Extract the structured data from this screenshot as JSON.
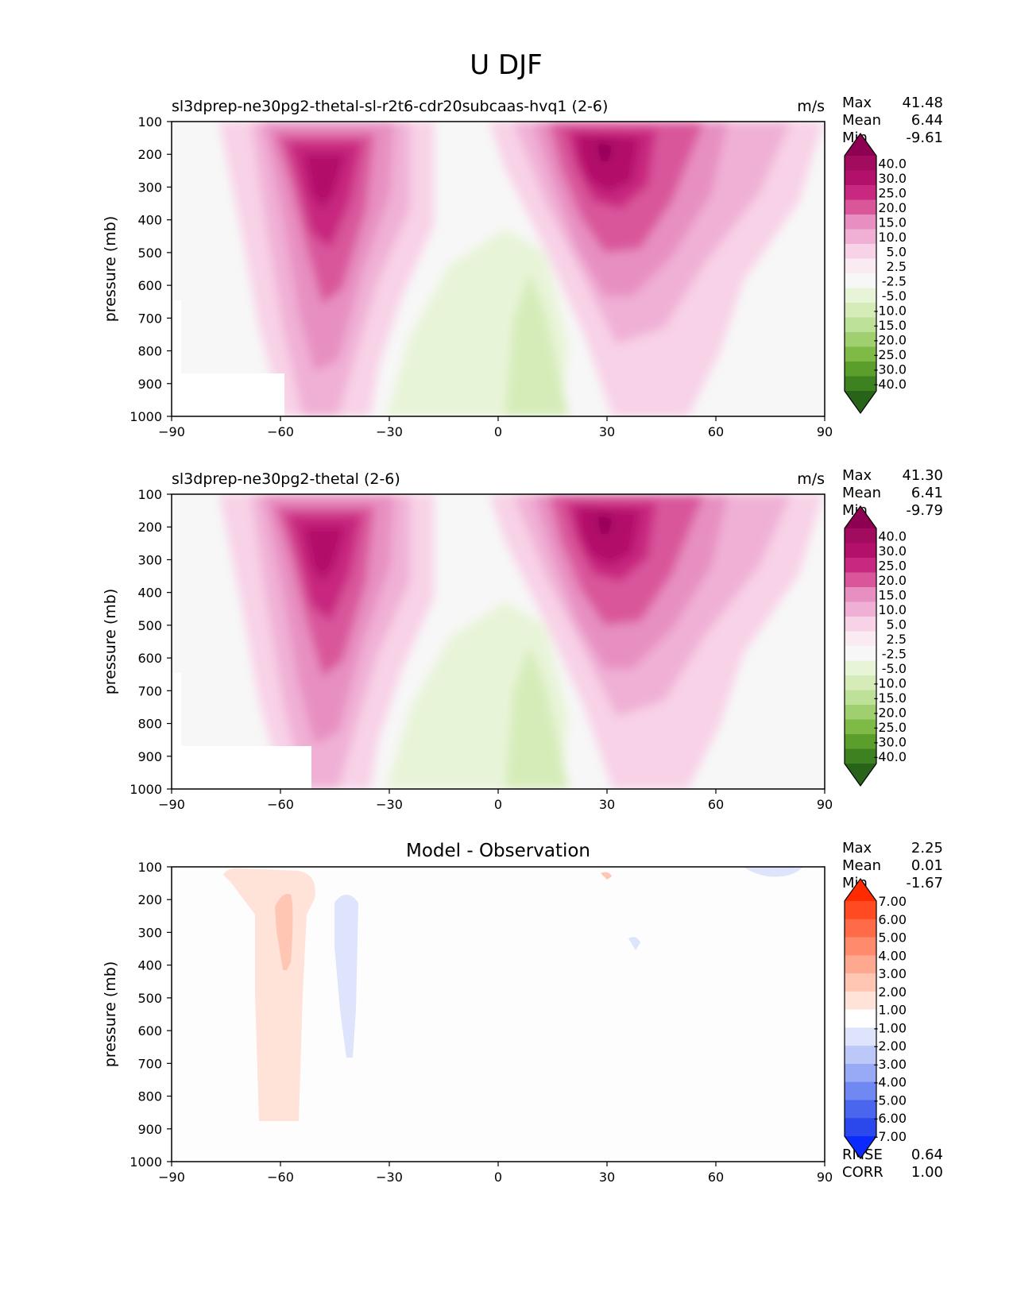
{
  "figure": {
    "title": "U DJF"
  },
  "chart_data": [
    {
      "type": "heatmap",
      "title": "sl3dprep-ne30pg2-thetal-sl-r2t6-cdr20subcaas-hvq1 (2-6)",
      "units": "m/s",
      "xlabel": "",
      "ylabel": "pressure (mb)",
      "xlim": [
        -90,
        90
      ],
      "ylim": [
        1000,
        100
      ],
      "xticks": [
        "−90",
        "−60",
        "−30",
        "0",
        "30",
        "60",
        "90"
      ],
      "yticks": [
        "100",
        "200",
        "300",
        "400",
        "500",
        "600",
        "700",
        "800",
        "900",
        "1000"
      ],
      "stats": [
        {
          "label": "Max",
          "value": "41.48"
        },
        {
          "label": "Mean",
          "value": "6.44"
        },
        {
          "label": "Min",
          "value": "-9.61"
        }
      ],
      "colorbar": {
        "labels": [
          "40.0",
          "30.0",
          "25.0",
          "20.0",
          "15.0",
          "10.0",
          "5.0",
          "2.5",
          "-2.5",
          "-5.0",
          "-10.0",
          "-15.0",
          "-20.0",
          "-25.0",
          "-30.0",
          "-40.0"
        ],
        "colors": [
          "#8e0152",
          "#a10c5e",
          "#b3106b",
          "#c8287f",
          "#d9569b",
          "#e78fc1",
          "#f0b0d5",
          "#f8d2e7",
          "#faeaf2",
          "#f7f7f7",
          "#e8f4d8",
          "#d5ecb8",
          "#bde199",
          "#9fcf6e",
          "#7fb946",
          "#5b9e2c",
          "#3d8120",
          "#276419"
        ]
      },
      "features": [
        {
          "description": "southern jet core",
          "lat": -47,
          "pressure": 250,
          "peak": 35
        },
        {
          "description": "northern jet core",
          "lat": 30,
          "pressure": 220,
          "peak": 41.48
        },
        {
          "description": "tropical easterlies",
          "lat": 8,
          "pressure": 800,
          "peak": -9.61
        }
      ]
    },
    {
      "type": "heatmap",
      "title": "sl3dprep-ne30pg2-thetal (2-6)",
      "units": "m/s",
      "xlabel": "",
      "ylabel": "pressure (mb)",
      "xlim": [
        -90,
        90
      ],
      "ylim": [
        1000,
        100
      ],
      "xticks": [
        "−90",
        "−60",
        "−30",
        "0",
        "30",
        "60",
        "90"
      ],
      "yticks": [
        "100",
        "200",
        "300",
        "400",
        "500",
        "600",
        "700",
        "800",
        "900",
        "1000"
      ],
      "stats": [
        {
          "label": "Max",
          "value": "41.30"
        },
        {
          "label": "Mean",
          "value": "6.41"
        },
        {
          "label": "Min",
          "value": "-9.79"
        }
      ],
      "colorbar": {
        "labels": [
          "40.0",
          "30.0",
          "25.0",
          "20.0",
          "15.0",
          "10.0",
          "5.0",
          "2.5",
          "-2.5",
          "-5.0",
          "-10.0",
          "-15.0",
          "-20.0",
          "-25.0",
          "-30.0",
          "-40.0"
        ],
        "colors": [
          "#8e0152",
          "#a10c5e",
          "#b3106b",
          "#c8287f",
          "#d9569b",
          "#e78fc1",
          "#f0b0d5",
          "#f8d2e7",
          "#faeaf2",
          "#f7f7f7",
          "#e8f4d8",
          "#d5ecb8",
          "#bde199",
          "#9fcf6e",
          "#7fb946",
          "#5b9e2c",
          "#3d8120",
          "#276419"
        ]
      },
      "features": [
        {
          "description": "southern jet core",
          "lat": -47,
          "pressure": 250,
          "peak": 35
        },
        {
          "description": "northern jet core",
          "lat": 30,
          "pressure": 220,
          "peak": 41.3
        },
        {
          "description": "tropical easterlies",
          "lat": 8,
          "pressure": 800,
          "peak": -9.79
        }
      ]
    },
    {
      "type": "heatmap",
      "title": "Model - Observation",
      "xlabel": "",
      "ylabel": "pressure (mb)",
      "xlim": [
        -90,
        90
      ],
      "ylim": [
        1000,
        100
      ],
      "xticks": [
        "−90",
        "−60",
        "−30",
        "0",
        "30",
        "60",
        "90"
      ],
      "yticks": [
        "100",
        "200",
        "300",
        "400",
        "500",
        "600",
        "700",
        "800",
        "900",
        "1000"
      ],
      "stats": [
        {
          "label": "Max",
          "value": "2.25"
        },
        {
          "label": "Mean",
          "value": "0.01"
        },
        {
          "label": "Min",
          "value": "-1.67"
        }
      ],
      "metrics": [
        {
          "label": "RMSE",
          "value": "0.64"
        },
        {
          "label": "CORR",
          "value": "1.00"
        }
      ],
      "colorbar": {
        "labels": [
          "7.00",
          "6.00",
          "5.00",
          "4.00",
          "3.00",
          "2.00",
          "1.00",
          "-1.00",
          "-2.00",
          "-3.00",
          "-4.00",
          "-5.00",
          "-6.00",
          "-7.00"
        ],
        "colors": [
          "#ff2a00",
          "#ff4a22",
          "#ff6a48",
          "#ff8a6c",
          "#ffa890",
          "#ffc6b4",
          "#ffe2d8",
          "#ffffff",
          "#dde4fb",
          "#bcc8f8",
          "#98a9f5",
          "#7088f2",
          "#4a66ef",
          "#2a48ec",
          "#0a2aff"
        ]
      },
      "features": [
        {
          "description": "positive difference",
          "lat": -60,
          "pressure": 300,
          "peak": 2.25
        },
        {
          "description": "negative difference",
          "lat": -40,
          "pressure": 400,
          "peak": -1.67
        }
      ]
    }
  ]
}
